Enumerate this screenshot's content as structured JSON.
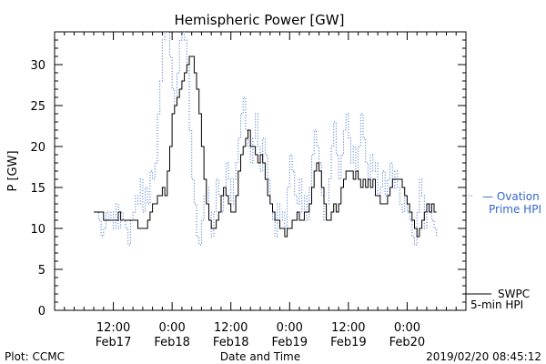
{
  "chart_data": {
    "type": "line",
    "title": "Hemispheric Power [GW]",
    "ylabel": "P [GW]",
    "xlabel": "Date and Time",
    "ylim": [
      0,
      34
    ],
    "yticks": [
      0,
      5,
      10,
      15,
      20,
      25,
      30
    ],
    "xlim": [
      0,
      84
    ],
    "x_units": "hours since 2019/02/17 00:00",
    "xticks": [
      {
        "x": 12,
        "label1": "12:00",
        "label2": "Feb17"
      },
      {
        "x": 24,
        "label1": "0:00",
        "label2": "Feb18"
      },
      {
        "x": 36,
        "label1": "12:00",
        "label2": "Feb18"
      },
      {
        "x": 48,
        "label1": "0:00",
        "label2": "Feb19"
      },
      {
        "x": 60,
        "label1": "12:00",
        "label2": "Feb19"
      },
      {
        "x": 72,
        "label1": "0:00",
        "label2": "Feb20"
      }
    ],
    "grid": false,
    "series": [
      {
        "name": "SWPC 5-min HPI",
        "legend_line1": "SWPC",
        "legend_line2": "5-min HPI",
        "color": "#000000",
        "style": "solid",
        "points": [
          [
            8.0,
            12
          ],
          [
            9.5,
            12
          ],
          [
            10.0,
            11
          ],
          [
            12.5,
            11
          ],
          [
            13.0,
            12
          ],
          [
            13.5,
            11
          ],
          [
            16.5,
            11
          ],
          [
            17.0,
            10
          ],
          [
            18.5,
            10
          ],
          [
            19.0,
            11
          ],
          [
            19.5,
            12
          ],
          [
            20.0,
            13
          ],
          [
            20.5,
            13
          ],
          [
            21.0,
            14
          ],
          [
            21.5,
            14
          ],
          [
            22.0,
            15
          ],
          [
            22.5,
            14
          ],
          [
            23.0,
            17
          ],
          [
            23.5,
            20
          ],
          [
            24.0,
            24
          ],
          [
            24.5,
            25
          ],
          [
            25.0,
            26
          ],
          [
            25.5,
            27
          ],
          [
            26.0,
            28
          ],
          [
            26.5,
            29
          ],
          [
            27.0,
            30
          ],
          [
            27.5,
            31
          ],
          [
            28.0,
            31
          ],
          [
            28.5,
            29
          ],
          [
            29.0,
            27
          ],
          [
            29.5,
            24
          ],
          [
            30.0,
            20
          ],
          [
            30.5,
            16
          ],
          [
            31.0,
            13
          ],
          [
            31.5,
            11
          ],
          [
            32.0,
            10
          ],
          [
            32.5,
            10
          ],
          [
            33.0,
            11
          ],
          [
            33.5,
            12
          ],
          [
            34.0,
            14
          ],
          [
            34.5,
            15
          ],
          [
            35.0,
            14
          ],
          [
            35.5,
            13
          ],
          [
            36.0,
            12
          ],
          [
            36.5,
            12
          ],
          [
            37.0,
            14
          ],
          [
            37.5,
            17
          ],
          [
            38.0,
            19
          ],
          [
            38.5,
            20
          ],
          [
            39.0,
            21
          ],
          [
            39.5,
            22
          ],
          [
            40.0,
            20
          ],
          [
            40.5,
            20
          ],
          [
            41.0,
            19
          ],
          [
            41.5,
            18
          ],
          [
            42.0,
            19
          ],
          [
            42.5,
            18
          ],
          [
            43.0,
            16
          ],
          [
            43.5,
            14
          ],
          [
            44.0,
            13
          ],
          [
            44.5,
            12
          ],
          [
            45.0,
            11
          ],
          [
            45.5,
            11
          ],
          [
            46.0,
            10
          ],
          [
            46.5,
            10
          ],
          [
            47.0,
            9
          ],
          [
            47.5,
            10
          ],
          [
            48.0,
            10
          ],
          [
            48.5,
            11
          ],
          [
            49.0,
            11
          ],
          [
            49.5,
            12
          ],
          [
            50.0,
            11
          ],
          [
            50.5,
            11
          ],
          [
            51.0,
            12
          ],
          [
            51.5,
            12
          ],
          [
            52.0,
            13
          ],
          [
            52.5,
            15
          ],
          [
            53.0,
            17
          ],
          [
            53.5,
            18
          ],
          [
            54.0,
            17
          ],
          [
            54.5,
            15
          ],
          [
            55.0,
            13
          ],
          [
            55.5,
            11
          ],
          [
            56.0,
            11
          ],
          [
            56.5,
            12
          ],
          [
            57.0,
            13
          ],
          [
            57.5,
            12
          ],
          [
            58.0,
            13
          ],
          [
            58.5,
            15
          ],
          [
            59.0,
            16
          ],
          [
            59.5,
            17
          ],
          [
            60.0,
            17
          ],
          [
            60.5,
            17
          ],
          [
            61.0,
            16
          ],
          [
            61.5,
            17
          ],
          [
            62.0,
            16
          ],
          [
            62.5,
            15
          ],
          [
            63.0,
            16
          ],
          [
            63.5,
            15
          ],
          [
            64.0,
            16
          ],
          [
            64.5,
            15
          ],
          [
            65.0,
            16
          ],
          [
            65.5,
            14
          ],
          [
            66.0,
            14
          ],
          [
            66.5,
            13
          ],
          [
            67.0,
            13
          ],
          [
            67.5,
            13
          ],
          [
            68.0,
            14
          ],
          [
            68.5,
            15
          ],
          [
            69.0,
            16
          ],
          [
            69.5,
            16
          ],
          [
            70.0,
            16
          ],
          [
            70.5,
            16
          ],
          [
            71.0,
            15
          ],
          [
            71.5,
            14
          ],
          [
            72.0,
            13
          ],
          [
            72.5,
            12
          ],
          [
            73.0,
            11
          ],
          [
            73.5,
            10
          ],
          [
            74.0,
            9
          ],
          [
            74.5,
            10
          ],
          [
            75.0,
            11
          ],
          [
            75.5,
            12
          ],
          [
            76.0,
            13
          ],
          [
            76.5,
            12
          ],
          [
            77.0,
            13
          ],
          [
            77.5,
            12
          ],
          [
            78.0,
            12
          ]
        ]
      },
      {
        "name": "Ovation Prime HPI",
        "legend_line1": "— Ovation",
        "legend_line2": "Prime HPI",
        "color": "#3366cc",
        "style": "dotted",
        "points": [
          [
            8.0,
            12
          ],
          [
            9.0,
            11
          ],
          [
            9.5,
            9
          ],
          [
            10.0,
            10
          ],
          [
            10.5,
            12
          ],
          [
            11.0,
            11
          ],
          [
            11.5,
            12
          ],
          [
            12.0,
            10
          ],
          [
            12.5,
            13
          ],
          [
            13.0,
            10
          ],
          [
            13.5,
            12
          ],
          [
            14.0,
            11
          ],
          [
            14.5,
            10
          ],
          [
            15.0,
            8
          ],
          [
            15.5,
            11
          ],
          [
            16.0,
            12
          ],
          [
            16.5,
            14
          ],
          [
            17.0,
            13
          ],
          [
            17.5,
            16
          ],
          [
            18.0,
            12
          ],
          [
            18.5,
            15
          ],
          [
            19.0,
            13
          ],
          [
            19.5,
            17
          ],
          [
            20.0,
            16
          ],
          [
            20.5,
            18
          ],
          [
            21.0,
            24
          ],
          [
            21.5,
            28
          ],
          [
            22.0,
            33
          ],
          [
            22.5,
            34
          ],
          [
            23.0,
            34
          ],
          [
            23.5,
            31
          ],
          [
            24.0,
            27
          ],
          [
            24.5,
            25
          ],
          [
            25.0,
            29
          ],
          [
            25.5,
            33
          ],
          [
            26.0,
            34
          ],
          [
            26.5,
            33
          ],
          [
            27.0,
            30
          ],
          [
            27.5,
            22
          ],
          [
            28.0,
            16
          ],
          [
            28.5,
            13
          ],
          [
            29.0,
            9
          ],
          [
            29.5,
            8
          ],
          [
            30.0,
            11
          ],
          [
            30.5,
            14
          ],
          [
            31.0,
            15
          ],
          [
            31.5,
            12
          ],
          [
            32.0,
            9
          ],
          [
            32.5,
            12
          ],
          [
            33.0,
            16
          ],
          [
            33.5,
            14
          ],
          [
            34.0,
            12
          ],
          [
            34.5,
            15
          ],
          [
            35.0,
            18
          ],
          [
            35.5,
            16
          ],
          [
            36.0,
            13
          ],
          [
            36.5,
            16
          ],
          [
            37.0,
            18
          ],
          [
            37.5,
            21
          ],
          [
            38.0,
            24
          ],
          [
            38.5,
            26
          ],
          [
            39.0,
            22
          ],
          [
            39.5,
            20
          ],
          [
            40.0,
            18
          ],
          [
            40.5,
            21
          ],
          [
            41.0,
            24
          ],
          [
            41.5,
            20
          ],
          [
            42.0,
            17
          ],
          [
            42.5,
            21
          ],
          [
            43.0,
            19
          ],
          [
            43.5,
            16
          ],
          [
            44.0,
            13
          ],
          [
            44.5,
            11
          ],
          [
            45.0,
            9
          ],
          [
            45.5,
            13
          ],
          [
            46.0,
            11
          ],
          [
            46.5,
            12
          ],
          [
            47.0,
            10
          ],
          [
            47.5,
            15
          ],
          [
            48.0,
            19
          ],
          [
            48.5,
            17
          ],
          [
            49.0,
            14
          ],
          [
            49.5,
            13
          ],
          [
            50.0,
            16
          ],
          [
            50.5,
            12
          ],
          [
            51.0,
            14
          ],
          [
            51.5,
            11
          ],
          [
            52.0,
            15
          ],
          [
            52.5,
            19
          ],
          [
            53.0,
            22
          ],
          [
            53.5,
            20
          ],
          [
            54.0,
            18
          ],
          [
            54.5,
            14
          ],
          [
            55.0,
            11
          ],
          [
            55.5,
            13
          ],
          [
            56.0,
            16
          ],
          [
            56.5,
            20
          ],
          [
            57.0,
            23
          ],
          [
            57.5,
            19
          ],
          [
            58.0,
            16
          ],
          [
            58.5,
            19
          ],
          [
            59.0,
            22
          ],
          [
            59.5,
            24
          ],
          [
            60.0,
            21
          ],
          [
            60.5,
            18
          ],
          [
            61.0,
            20
          ],
          [
            61.5,
            17
          ],
          [
            62.0,
            20
          ],
          [
            62.5,
            24
          ],
          [
            63.0,
            21
          ],
          [
            63.5,
            18
          ],
          [
            64.0,
            16
          ],
          [
            64.5,
            19
          ],
          [
            65.0,
            17
          ],
          [
            65.5,
            18
          ],
          [
            66.0,
            14
          ],
          [
            66.5,
            15
          ],
          [
            67.0,
            17
          ],
          [
            67.5,
            14
          ],
          [
            68.0,
            16
          ],
          [
            68.5,
            18
          ],
          [
            69.0,
            15
          ],
          [
            69.5,
            17
          ],
          [
            70.0,
            15
          ],
          [
            70.5,
            13
          ],
          [
            71.0,
            12
          ],
          [
            71.5,
            14
          ],
          [
            72.0,
            12
          ],
          [
            72.5,
            11
          ],
          [
            73.0,
            9
          ],
          [
            73.5,
            8
          ],
          [
            74.0,
            12
          ],
          [
            74.5,
            16
          ],
          [
            75.0,
            14
          ],
          [
            75.5,
            10
          ],
          [
            76.0,
            12
          ],
          [
            76.5,
            13
          ],
          [
            77.0,
            11
          ],
          [
            77.5,
            10
          ],
          [
            78.0,
            9
          ]
        ]
      }
    ]
  },
  "footer": {
    "left": "Plot: CCMC",
    "timestamp": "2019/02/20 08:45:12"
  }
}
